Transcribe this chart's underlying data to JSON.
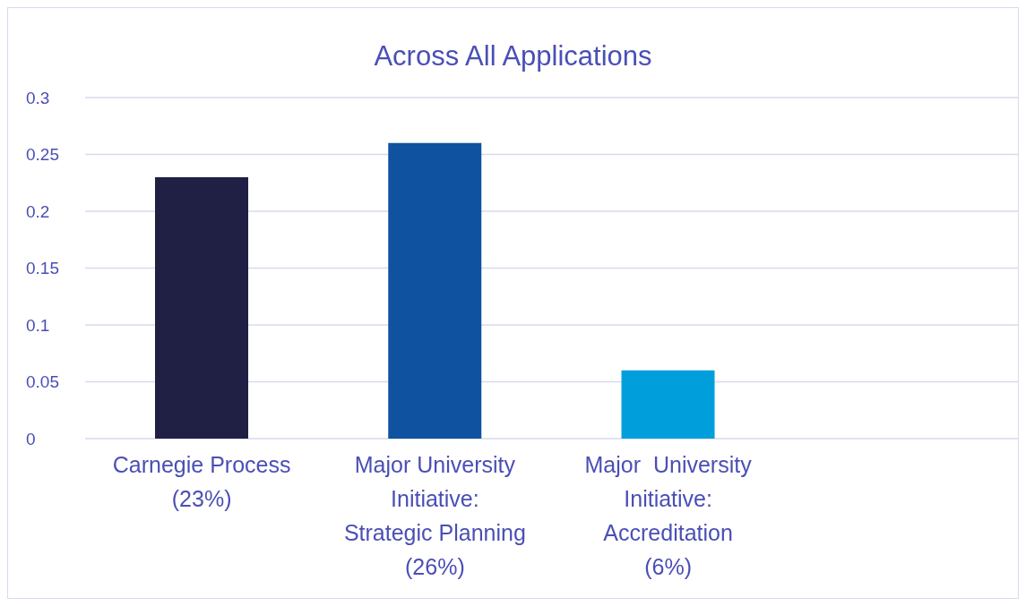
{
  "chart_data": {
    "type": "bar",
    "title": "Across All Applications",
    "categories": [
      "Carnegie Process\n(23%)",
      "Major University\nInitiative:\nStrategic Planning\n(26%)",
      "Major  University\nInitiative:\nAccreditation\n(6%)",
      null
    ],
    "values": [
      0.23,
      0.26,
      0.06,
      null
    ],
    "colors": [
      "#1f2044",
      "#0f52a0",
      "#009fdb",
      "#009fdb"
    ],
    "ylim": [
      0,
      0.3
    ],
    "yticks": [
      0,
      0.05,
      0.1,
      0.15,
      0.2,
      0.25,
      0.3
    ],
    "grid": "y"
  }
}
